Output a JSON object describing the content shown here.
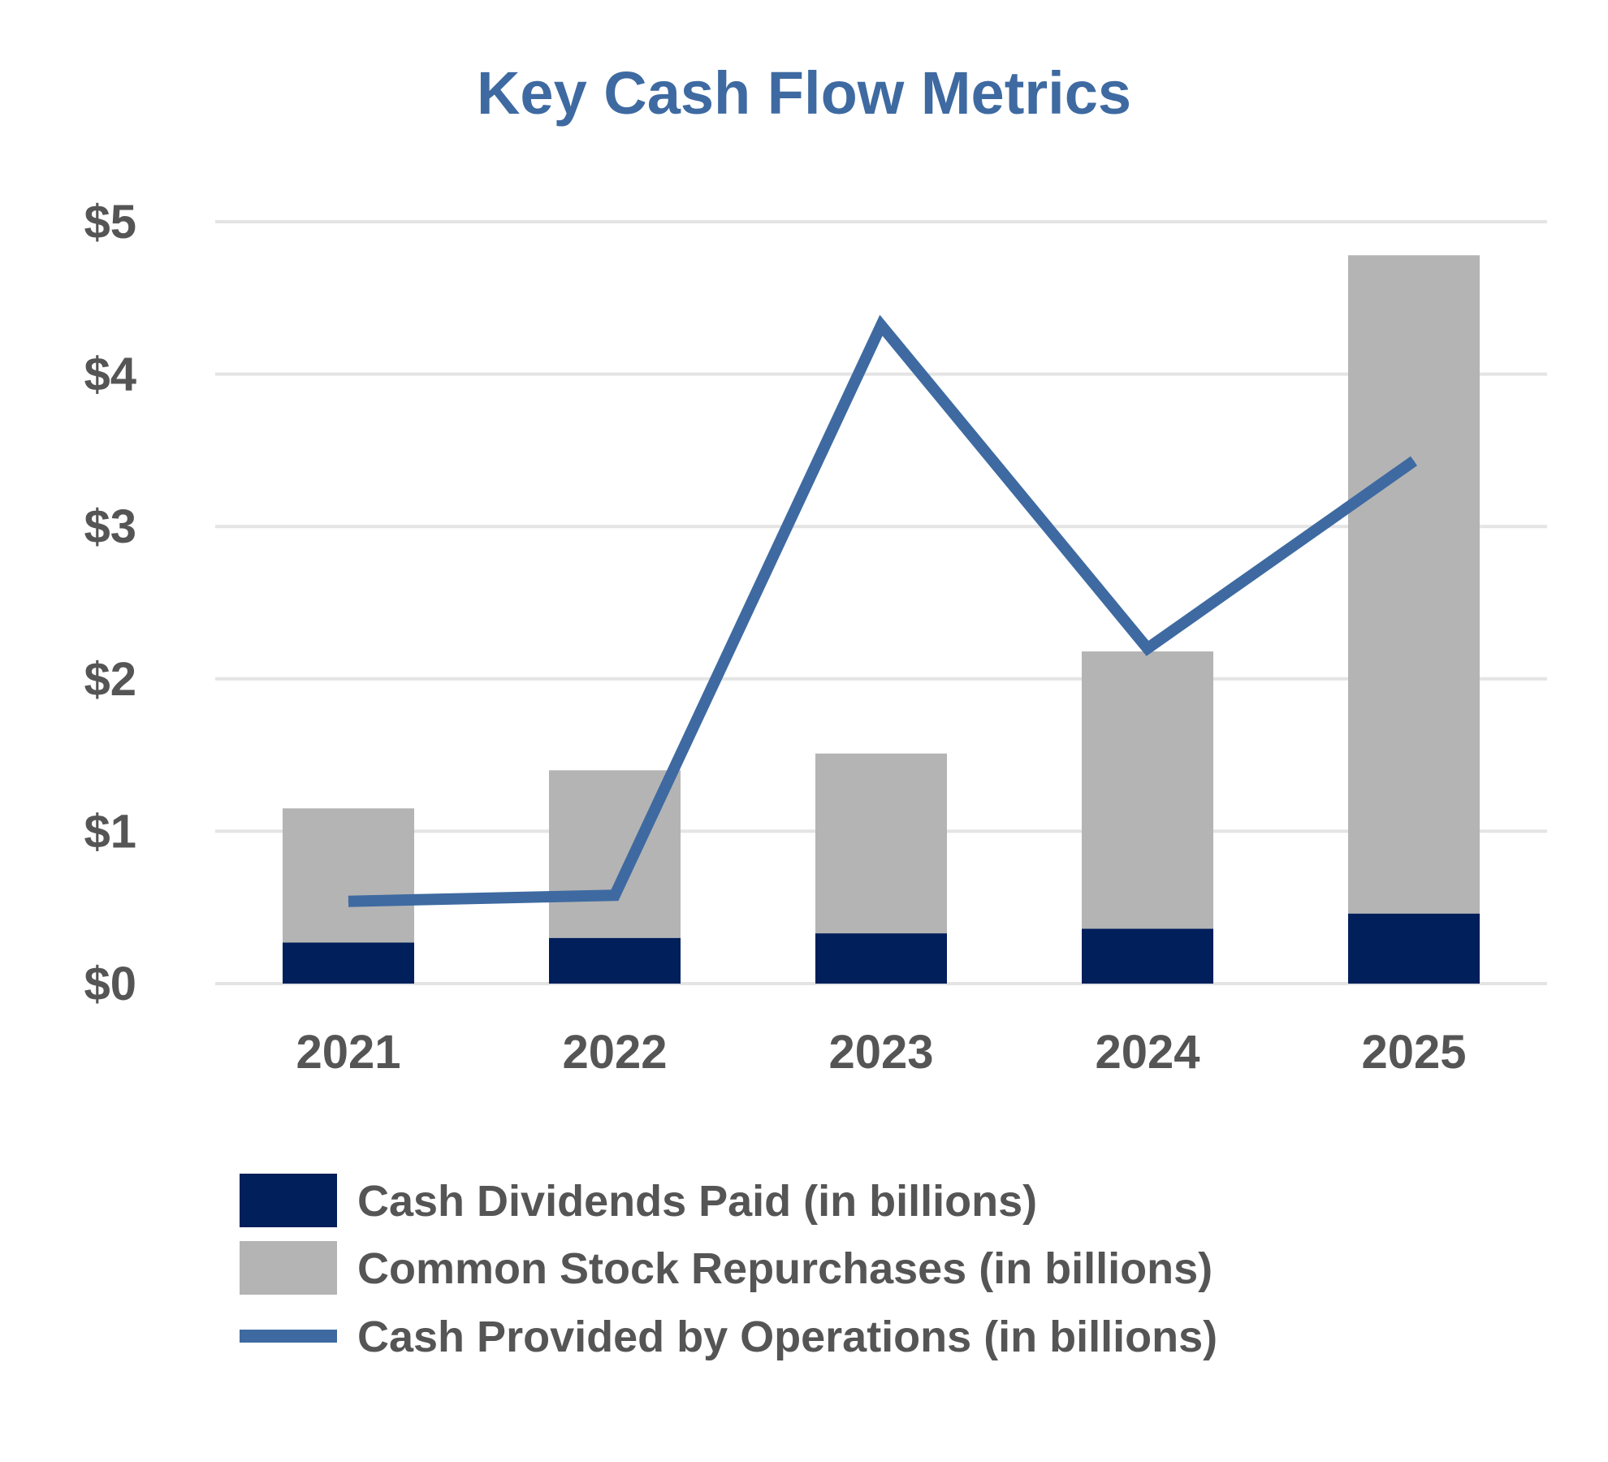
{
  "chart_data": {
    "type": "bar",
    "stacked": true,
    "title": "Key Cash Flow Metrics",
    "xlabel": "",
    "ylabel": "",
    "categories": [
      "2021",
      "2022",
      "2023",
      "2024",
      "2025"
    ],
    "y_tick_labels": [
      "$0",
      "$1",
      "$2",
      "$3",
      "$4",
      "$5"
    ],
    "y_ticks": [
      0,
      1,
      2,
      3,
      4,
      5
    ],
    "ylim": [
      0,
      5
    ],
    "grid": true,
    "legend_position": "bottom",
    "series": [
      {
        "name": "Cash Dividends Paid (in billions)",
        "type": "bar",
        "color": "#001f5b",
        "values": [
          0.27,
          0.3,
          0.33,
          0.36,
          0.46
        ]
      },
      {
        "name": "Common Stock Repurchases (in billions)",
        "type": "bar",
        "color": "#b4b4b4",
        "values": [
          0.88,
          1.1,
          1.18,
          1.82,
          4.32
        ]
      },
      {
        "name": "Cash Provided by Operations (in billions)",
        "type": "line",
        "color": "#3e6aa1",
        "values": [
          0.54,
          0.58,
          4.32,
          2.2,
          3.43
        ]
      }
    ]
  },
  "colors": {
    "title": "#3e6aa1",
    "text": "#555555",
    "grid": "#e4e4e4"
  }
}
